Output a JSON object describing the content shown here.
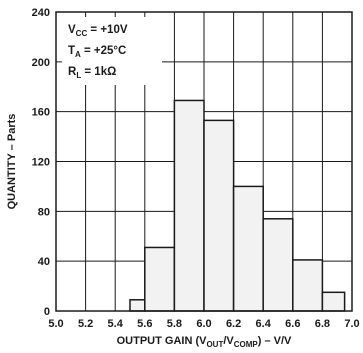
{
  "chart_data": {
    "type": "bar",
    "xlabel_parts": {
      "prefix": "OUTPUT GAIN (V",
      "sub1": "OUT",
      "mid": "/V",
      "sub2": "COMP",
      "suffix": ") – V/V"
    },
    "ylabel": "QUANTITY – Parts",
    "xlim": [
      5.0,
      7.0
    ],
    "ylim": [
      0,
      240
    ],
    "x_ticks": [
      "5.0",
      "5.2",
      "5.4",
      "5.6",
      "5.8",
      "6.0",
      "6.2",
      "6.4",
      "6.6",
      "6.8",
      "7.0"
    ],
    "y_ticks": [
      "0",
      "40",
      "80",
      "120",
      "160",
      "200",
      "240"
    ],
    "grid": true,
    "bins": [
      {
        "start": 5.5,
        "end": 5.6,
        "value": 9
      },
      {
        "start": 5.6,
        "end": 5.8,
        "value": 51
      },
      {
        "start": 5.8,
        "end": 6.0,
        "value": 169
      },
      {
        "start": 6.0,
        "end": 6.2,
        "value": 153
      },
      {
        "start": 6.2,
        "end": 6.4,
        "value": 100
      },
      {
        "start": 6.4,
        "end": 6.6,
        "value": 74
      },
      {
        "start": 6.6,
        "end": 6.8,
        "value": 41
      },
      {
        "start": 6.8,
        "end": 6.95,
        "value": 15
      }
    ],
    "conditions": [
      {
        "main": "V",
        "sub": "CC",
        "rest": " = +10V"
      },
      {
        "main": "T",
        "sub": "A",
        "rest": " = +25°C"
      },
      {
        "main": "R",
        "sub": "L",
        "rest": " = 1kΩ"
      }
    ],
    "colors": {
      "bar_fill": "#f2f2f2",
      "bar_edge": "#1a1a1a",
      "grid": "#1a1a1a"
    }
  }
}
